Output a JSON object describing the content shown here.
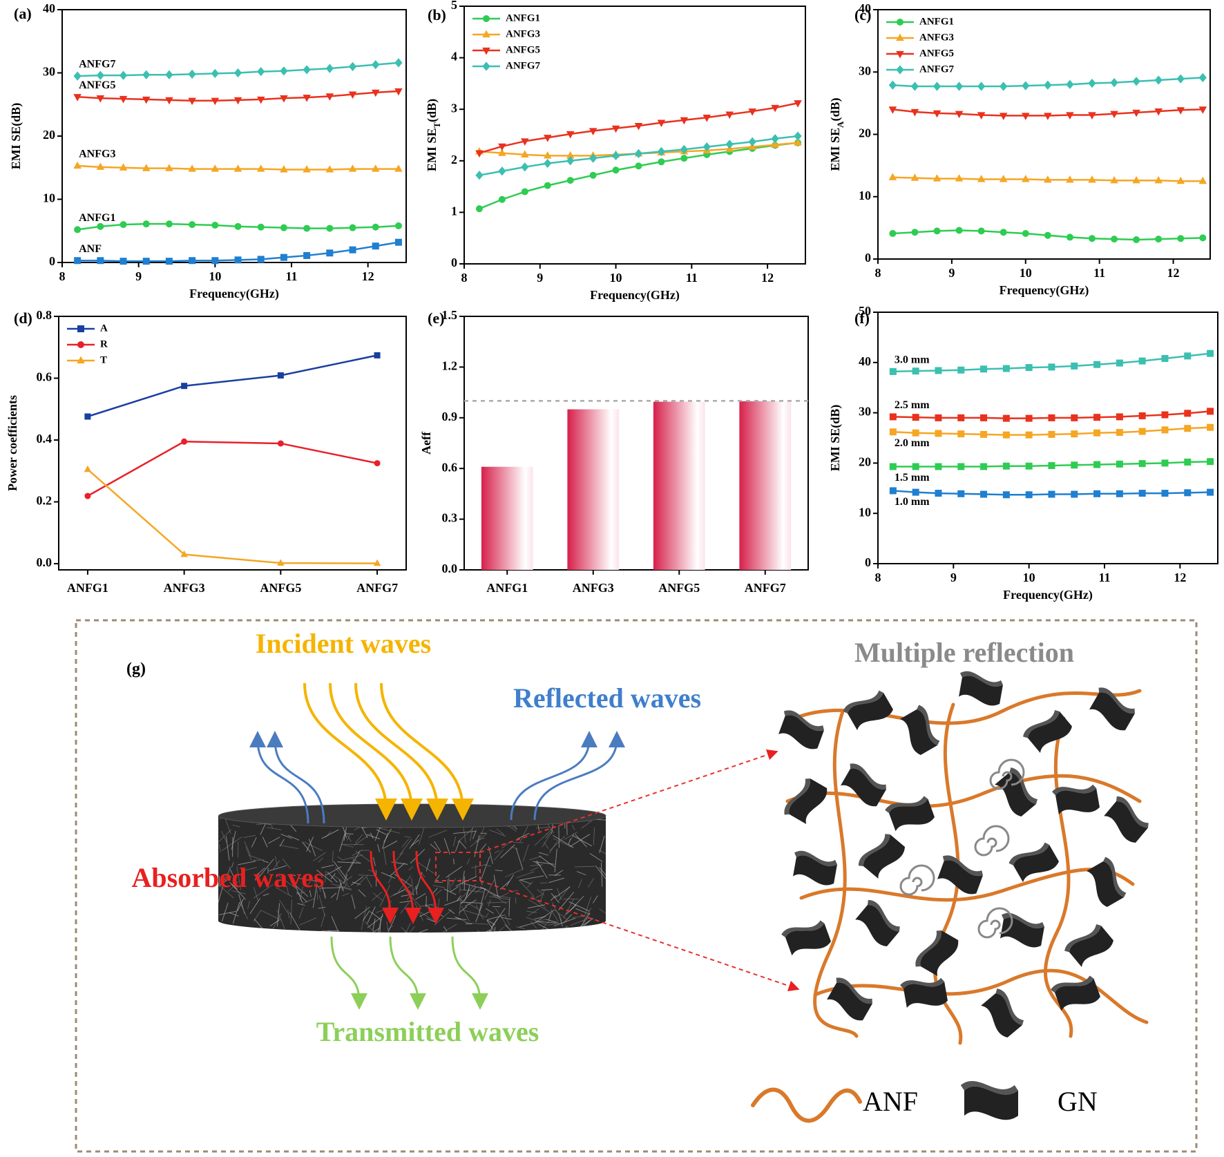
{
  "chart_data": [
    {
      "type": "line",
      "panel": "(a)",
      "xlabel": "Frequency(GHz)",
      "ylabel": [
        "EMI SE(dB)"
      ],
      "legend": "inline",
      "xlim": [
        8,
        12.5
      ],
      "xticks": [
        8,
        9,
        10,
        11,
        12
      ],
      "ylim": [
        0,
        40
      ],
      "yticks": [
        0,
        10,
        20,
        30,
        40
      ],
      "x": [
        8.2,
        8.5,
        8.8,
        9.1,
        9.4,
        9.7,
        10.0,
        10.3,
        10.6,
        10.9,
        11.2,
        11.5,
        11.8,
        12.1,
        12.4
      ],
      "series": [
        {
          "name": "ANF",
          "color": "#1f7fd0",
          "marker": "square",
          "label_side": "above",
          "values": [
            0.3,
            0.3,
            0.2,
            0.2,
            0.2,
            0.3,
            0.3,
            0.4,
            0.5,
            0.8,
            1.1,
            1.5,
            2.0,
            2.6,
            3.2
          ]
        },
        {
          "name": "ANFG1",
          "color": "#2ecc52",
          "marker": "circle",
          "label_side": "above",
          "values": [
            5.2,
            5.7,
            6.0,
            6.1,
            6.1,
            6.0,
            5.9,
            5.7,
            5.6,
            5.5,
            5.4,
            5.4,
            5.5,
            5.6,
            5.8
          ]
        },
        {
          "name": "ANFG3",
          "color": "#f5a623",
          "marker": "triangle-up",
          "label_side": "above",
          "values": [
            15.3,
            15.1,
            15.0,
            14.9,
            14.9,
            14.8,
            14.8,
            14.8,
            14.8,
            14.7,
            14.7,
            14.7,
            14.8,
            14.8,
            14.8
          ]
        },
        {
          "name": "ANFG5",
          "color": "#e8321e",
          "marker": "triangle-down",
          "label_side": "above",
          "values": [
            26.2,
            26.0,
            25.9,
            25.8,
            25.7,
            25.6,
            25.6,
            25.7,
            25.8,
            26.0,
            26.1,
            26.3,
            26.6,
            26.9,
            27.1
          ]
        },
        {
          "name": "ANFG7",
          "color": "#3bbfb0",
          "marker": "diamond",
          "label_side": "above",
          "values": [
            29.5,
            29.6,
            29.6,
            29.7,
            29.7,
            29.8,
            29.9,
            30.0,
            30.2,
            30.3,
            30.5,
            30.7,
            31.0,
            31.3,
            31.6
          ]
        }
      ]
    },
    {
      "type": "line",
      "panel": "(b)",
      "xlabel": "Frequency(GHz)",
      "ylabel": [
        "EMI SE",
        "T",
        "(dB)"
      ],
      "legend": "upper left",
      "xlim": [
        8,
        12.5
      ],
      "xticks": [
        8,
        9,
        10,
        11,
        12
      ],
      "ylim": [
        0,
        5
      ],
      "yticks": [
        0,
        1,
        2,
        3,
        4,
        5
      ],
      "x": [
        8.2,
        8.5,
        8.8,
        9.1,
        9.4,
        9.7,
        10.0,
        10.3,
        10.6,
        10.9,
        11.2,
        11.5,
        11.8,
        12.1,
        12.4
      ],
      "series": [
        {
          "name": "ANFG1",
          "color": "#2ecc52",
          "marker": "circle",
          "values": [
            1.07,
            1.25,
            1.4,
            1.52,
            1.62,
            1.72,
            1.82,
            1.9,
            1.98,
            2.05,
            2.12,
            2.18,
            2.24,
            2.3,
            2.35
          ]
        },
        {
          "name": "ANFG3",
          "color": "#f5a623",
          "marker": "triangle-up",
          "values": [
            2.18,
            2.15,
            2.12,
            2.1,
            2.1,
            2.1,
            2.12,
            2.14,
            2.16,
            2.18,
            2.2,
            2.23,
            2.27,
            2.31,
            2.35
          ]
        },
        {
          "name": "ANFG5",
          "color": "#e8321e",
          "marker": "triangle-down",
          "values": [
            2.15,
            2.28,
            2.38,
            2.45,
            2.52,
            2.58,
            2.63,
            2.68,
            2.74,
            2.79,
            2.84,
            2.9,
            2.96,
            3.03,
            3.12
          ]
        },
        {
          "name": "ANFG7",
          "color": "#3bbfb0",
          "marker": "diamond",
          "values": [
            1.72,
            1.8,
            1.88,
            1.95,
            2.0,
            2.05,
            2.1,
            2.14,
            2.18,
            2.22,
            2.27,
            2.32,
            2.37,
            2.43,
            2.48
          ]
        }
      ]
    },
    {
      "type": "line",
      "panel": "(c)",
      "xlabel": "Frequency(GHz)",
      "ylabel": [
        "EMI SE",
        "A",
        "(dB)"
      ],
      "legend": "upper left",
      "xlim": [
        8,
        12.5
      ],
      "xticks": [
        8,
        9,
        10,
        11,
        12
      ],
      "ylim": [
        0,
        40
      ],
      "yticks": [
        0,
        10,
        20,
        30,
        40
      ],
      "x": [
        8.2,
        8.5,
        8.8,
        9.1,
        9.4,
        9.7,
        10.0,
        10.3,
        10.6,
        10.9,
        11.2,
        11.5,
        11.8,
        12.1,
        12.4
      ],
      "series": [
        {
          "name": "ANFG1",
          "color": "#2ecc52",
          "marker": "circle",
          "values": [
            4.1,
            4.3,
            4.5,
            4.6,
            4.5,
            4.3,
            4.1,
            3.8,
            3.5,
            3.3,
            3.2,
            3.1,
            3.2,
            3.3,
            3.4
          ]
        },
        {
          "name": "ANFG3",
          "color": "#f5a623",
          "marker": "triangle-up",
          "values": [
            13.1,
            13.0,
            12.9,
            12.9,
            12.8,
            12.8,
            12.8,
            12.7,
            12.7,
            12.7,
            12.6,
            12.6,
            12.6,
            12.5,
            12.5
          ]
        },
        {
          "name": "ANFG5",
          "color": "#e8321e",
          "marker": "triangle-down",
          "values": [
            24.0,
            23.6,
            23.4,
            23.3,
            23.1,
            23.0,
            23.0,
            23.0,
            23.1,
            23.1,
            23.3,
            23.5,
            23.7,
            23.9,
            24.0
          ]
        },
        {
          "name": "ANFG7",
          "color": "#3bbfb0",
          "marker": "diamond",
          "values": [
            27.9,
            27.7,
            27.7,
            27.7,
            27.7,
            27.7,
            27.8,
            27.9,
            28.0,
            28.2,
            28.3,
            28.5,
            28.7,
            28.9,
            29.1
          ]
        }
      ]
    },
    {
      "type": "line",
      "panel": "(d)",
      "ylabel": [
        "Power coefficients"
      ],
      "legend": "upper left",
      "categories": [
        "ANFG1",
        "ANFG3",
        "ANFG5",
        "ANFG7"
      ],
      "ylim": [
        -0.02,
        0.8
      ],
      "yticks": [
        {
          "value": 0,
          "label": "0.0"
        },
        0.2,
        0.4,
        0.6,
        0.8
      ],
      "series": [
        {
          "name": "A",
          "color": "#1a3fa0",
          "marker": "square",
          "values": [
            0.476,
            0.575,
            0.609,
            0.674
          ]
        },
        {
          "name": "R",
          "color": "#e8202a",
          "marker": "circle",
          "values": [
            0.219,
            0.395,
            0.389,
            0.325
          ]
        },
        {
          "name": "T",
          "color": "#f5a623",
          "marker": "triangle-up",
          "values": [
            0.305,
            0.03,
            0.002,
            0.001
          ]
        }
      ]
    },
    {
      "type": "bar",
      "panel": "(e)",
      "ylabel": [
        "Aeff"
      ],
      "color": "#d6204a",
      "categories": [
        "ANFG1",
        "ANFG3",
        "ANFG5",
        "ANFG7"
      ],
      "values": [
        0.61,
        0.95,
        0.995,
        0.998
      ],
      "ylim": [
        0,
        1.5
      ],
      "yticks": [
        {
          "value": 0,
          "label": "0.0"
        },
        0.3,
        0.6,
        0.9,
        1.2,
        1.5
      ],
      "hline": 1
    },
    {
      "type": "line",
      "panel": "(f)",
      "xlabel": "Frequency(GHz)",
      "ylabel": [
        "EMI SE(dB)"
      ],
      "legend": "inline",
      "xlim": [
        8,
        12.5
      ],
      "xticks": [
        8,
        9,
        10,
        11,
        12
      ],
      "ylim": [
        0,
        50
      ],
      "yticks": [
        0,
        10,
        20,
        30,
        40,
        50
      ],
      "x": [
        8.2,
        8.5,
        8.8,
        9.1,
        9.4,
        9.7,
        10.0,
        10.3,
        10.6,
        10.9,
        11.2,
        11.5,
        11.8,
        12.1,
        12.4
      ],
      "series": [
        {
          "name": "1.0 mm",
          "color": "#1f7fd0",
          "marker": "square",
          "label_side": "below",
          "values": [
            14.5,
            14.2,
            14.0,
            13.9,
            13.8,
            13.7,
            13.7,
            13.8,
            13.8,
            13.9,
            13.9,
            14.0,
            14.0,
            14.1,
            14.2
          ]
        },
        {
          "name": "1.5 mm",
          "color": "#2ecc52",
          "marker": "square",
          "label_side": "below",
          "values": [
            19.3,
            19.3,
            19.3,
            19.3,
            19.3,
            19.4,
            19.4,
            19.5,
            19.6,
            19.7,
            19.8,
            19.9,
            20.0,
            20.2,
            20.3
          ]
        },
        {
          "name": "2.0 mm",
          "color": "#f5a623",
          "marker": "square",
          "label_side": "below",
          "values": [
            26.2,
            26.0,
            25.9,
            25.8,
            25.7,
            25.6,
            25.6,
            25.7,
            25.8,
            26.0,
            26.1,
            26.3,
            26.6,
            26.9,
            27.1
          ]
        },
        {
          "name": "2.5 mm",
          "color": "#e8321e",
          "marker": "square",
          "label_side": "above",
          "values": [
            29.2,
            29.1,
            29.0,
            29.0,
            29.0,
            28.9,
            28.9,
            29.0,
            29.0,
            29.1,
            29.2,
            29.4,
            29.6,
            29.9,
            30.3
          ]
        },
        {
          "name": "3.0 mm",
          "color": "#3bbfb0",
          "marker": "square",
          "label_side": "above",
          "values": [
            38.2,
            38.3,
            38.4,
            38.5,
            38.7,
            38.8,
            39.0,
            39.1,
            39.3,
            39.6,
            39.9,
            40.3,
            40.8,
            41.3,
            41.8
          ]
        }
      ]
    }
  ],
  "diagram": {
    "label": "(g)",
    "incident": "Incident waves",
    "reflected": "Reflected waves",
    "absorbed": "Absorbed waves",
    "transmitted": "Transmitted waves",
    "multiple": "Multiple reflection",
    "legend": [
      "ANF",
      "GN"
    ]
  }
}
